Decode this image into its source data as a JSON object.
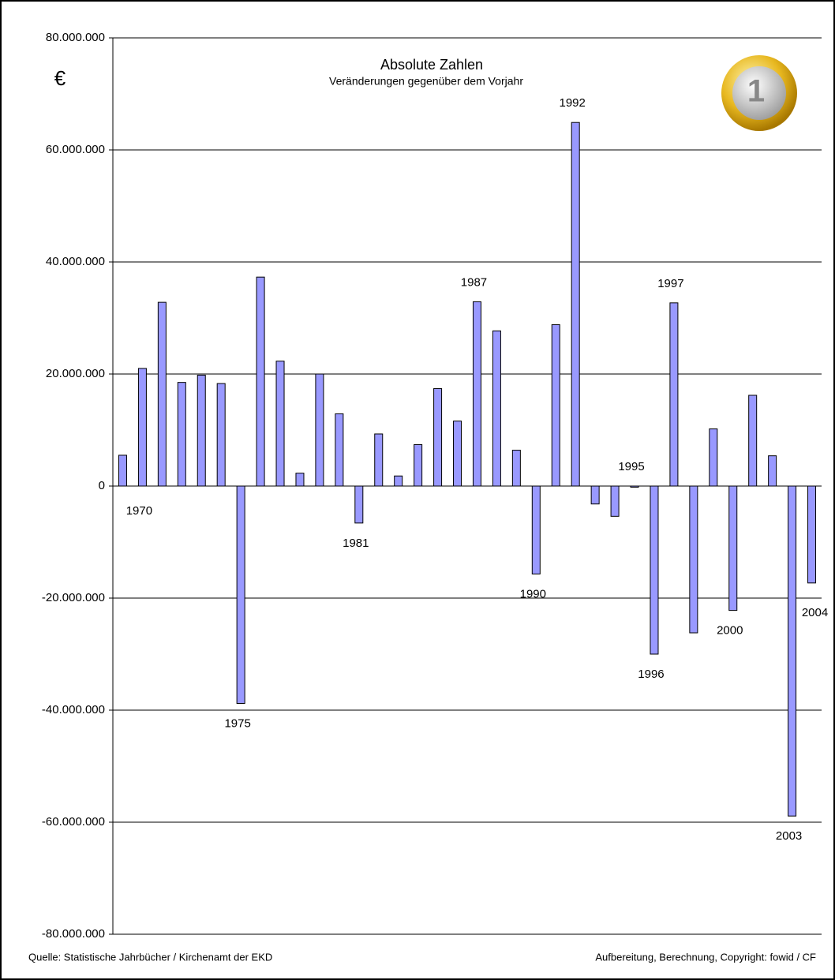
{
  "chart_data": {
    "type": "bar",
    "title": "Absolute Zahlen",
    "subtitle": "Veränderungen gegenüber dem Vorjahr",
    "unit_label": "€",
    "source": "Quelle: Statistische Jahrbücher / Kirchenamt der EKD",
    "credit": "Aufbereitung, Berechnung, Copyright: fowid / CF",
    "color": "#9999ff",
    "grid": true,
    "categories": [
      null,
      "1970",
      null,
      null,
      null,
      null,
      "1975",
      null,
      null,
      null,
      null,
      null,
      "1981",
      null,
      null,
      null,
      null,
      null,
      "1987",
      null,
      null,
      "1990",
      null,
      "1992",
      null,
      null,
      "1995",
      "1996",
      "1997",
      null,
      null,
      "2000",
      null,
      null,
      "2003",
      "2004"
    ],
    "values": [
      5500000,
      21000000,
      32800000,
      18500000,
      19800000,
      18300000,
      -38800000,
      37300000,
      22300000,
      2300000,
      20000000,
      12900000,
      -6600000,
      9300000,
      1800000,
      7400000,
      17400000,
      11600000,
      32900000,
      27700000,
      6400000,
      -15700000,
      28800000,
      64900000,
      -3200000,
      -5400000,
      -200000,
      -30000000,
      32700000,
      -26200000,
      10200000,
      -22200000,
      16200000,
      5400000,
      -58900000,
      -17300000
    ],
    "ylim": [
      -80000000,
      80000000
    ],
    "yticks": [
      {
        "value": -80000000,
        "label": "-80.000.000"
      },
      {
        "value": -60000000,
        "label": "-60.000.000"
      },
      {
        "value": -40000000,
        "label": "-40.000.000"
      },
      {
        "value": -20000000,
        "label": "-20.000.000"
      },
      0,
      {
        "value": 20000000,
        "label": "20.000.000"
      },
      {
        "value": 40000000,
        "label": "40.000.000"
      },
      {
        "value": 60000000,
        "label": "60.000.000"
      },
      {
        "value": 80000000,
        "label": "80.000.000"
      }
    ]
  }
}
